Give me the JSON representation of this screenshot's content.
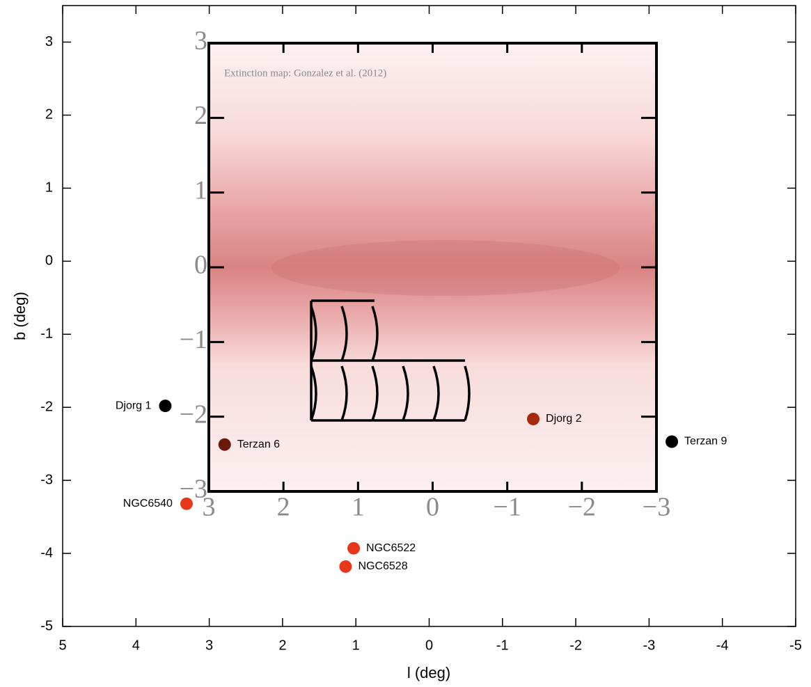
{
  "chart_data": [
    {
      "type": "scatter",
      "xlabel": "l (deg)",
      "ylabel": "b (deg)",
      "xlim": [
        5,
        -5
      ],
      "ylim": [
        -5,
        3.5
      ],
      "xticks": [
        5,
        4,
        3,
        2,
        1,
        0,
        -1,
        -2,
        -3,
        -4,
        -5
      ],
      "yticks": [
        3,
        2,
        1,
        0,
        -1,
        -2,
        -3,
        -4,
        -5
      ],
      "labels": [
        "Djorg 1",
        "Terzan 6",
        "NGC6540",
        "NGC6522",
        "NGC6528",
        "Djorg 2",
        "Terzan 9"
      ],
      "x": [
        3.6,
        2.79,
        3.31,
        1.03,
        1.14,
        -1.42,
        -3.31
      ],
      "y": [
        -1.98,
        -2.51,
        -3.32,
        -3.93,
        -4.18,
        -2.16,
        -2.47
      ],
      "colors": [
        "#000000",
        "#6b1a0a",
        "#e8381a",
        "#e8381a",
        "#e8381a",
        "#a8280c",
        "#000000"
      ]
    },
    {
      "type": "map",
      "annotation": "Extinction map: Gonzalez et al. (2012)",
      "xlim": [
        3,
        -3
      ],
      "ylim": [
        -3,
        3
      ],
      "xticks": [
        3,
        2,
        1,
        0,
        {
          "value": -1,
          "label": "−1"
        },
        {
          "value": -2,
          "label": "−2"
        },
        {
          "value": -3,
          "label": "−3"
        }
      ],
      "yticks": [
        3,
        2,
        1,
        0,
        {
          "value": -1,
          "label": "−1"
        },
        {
          "value": -2,
          "label": "−2"
        },
        {
          "value": -3,
          "label": "−3"
        }
      ]
    }
  ]
}
